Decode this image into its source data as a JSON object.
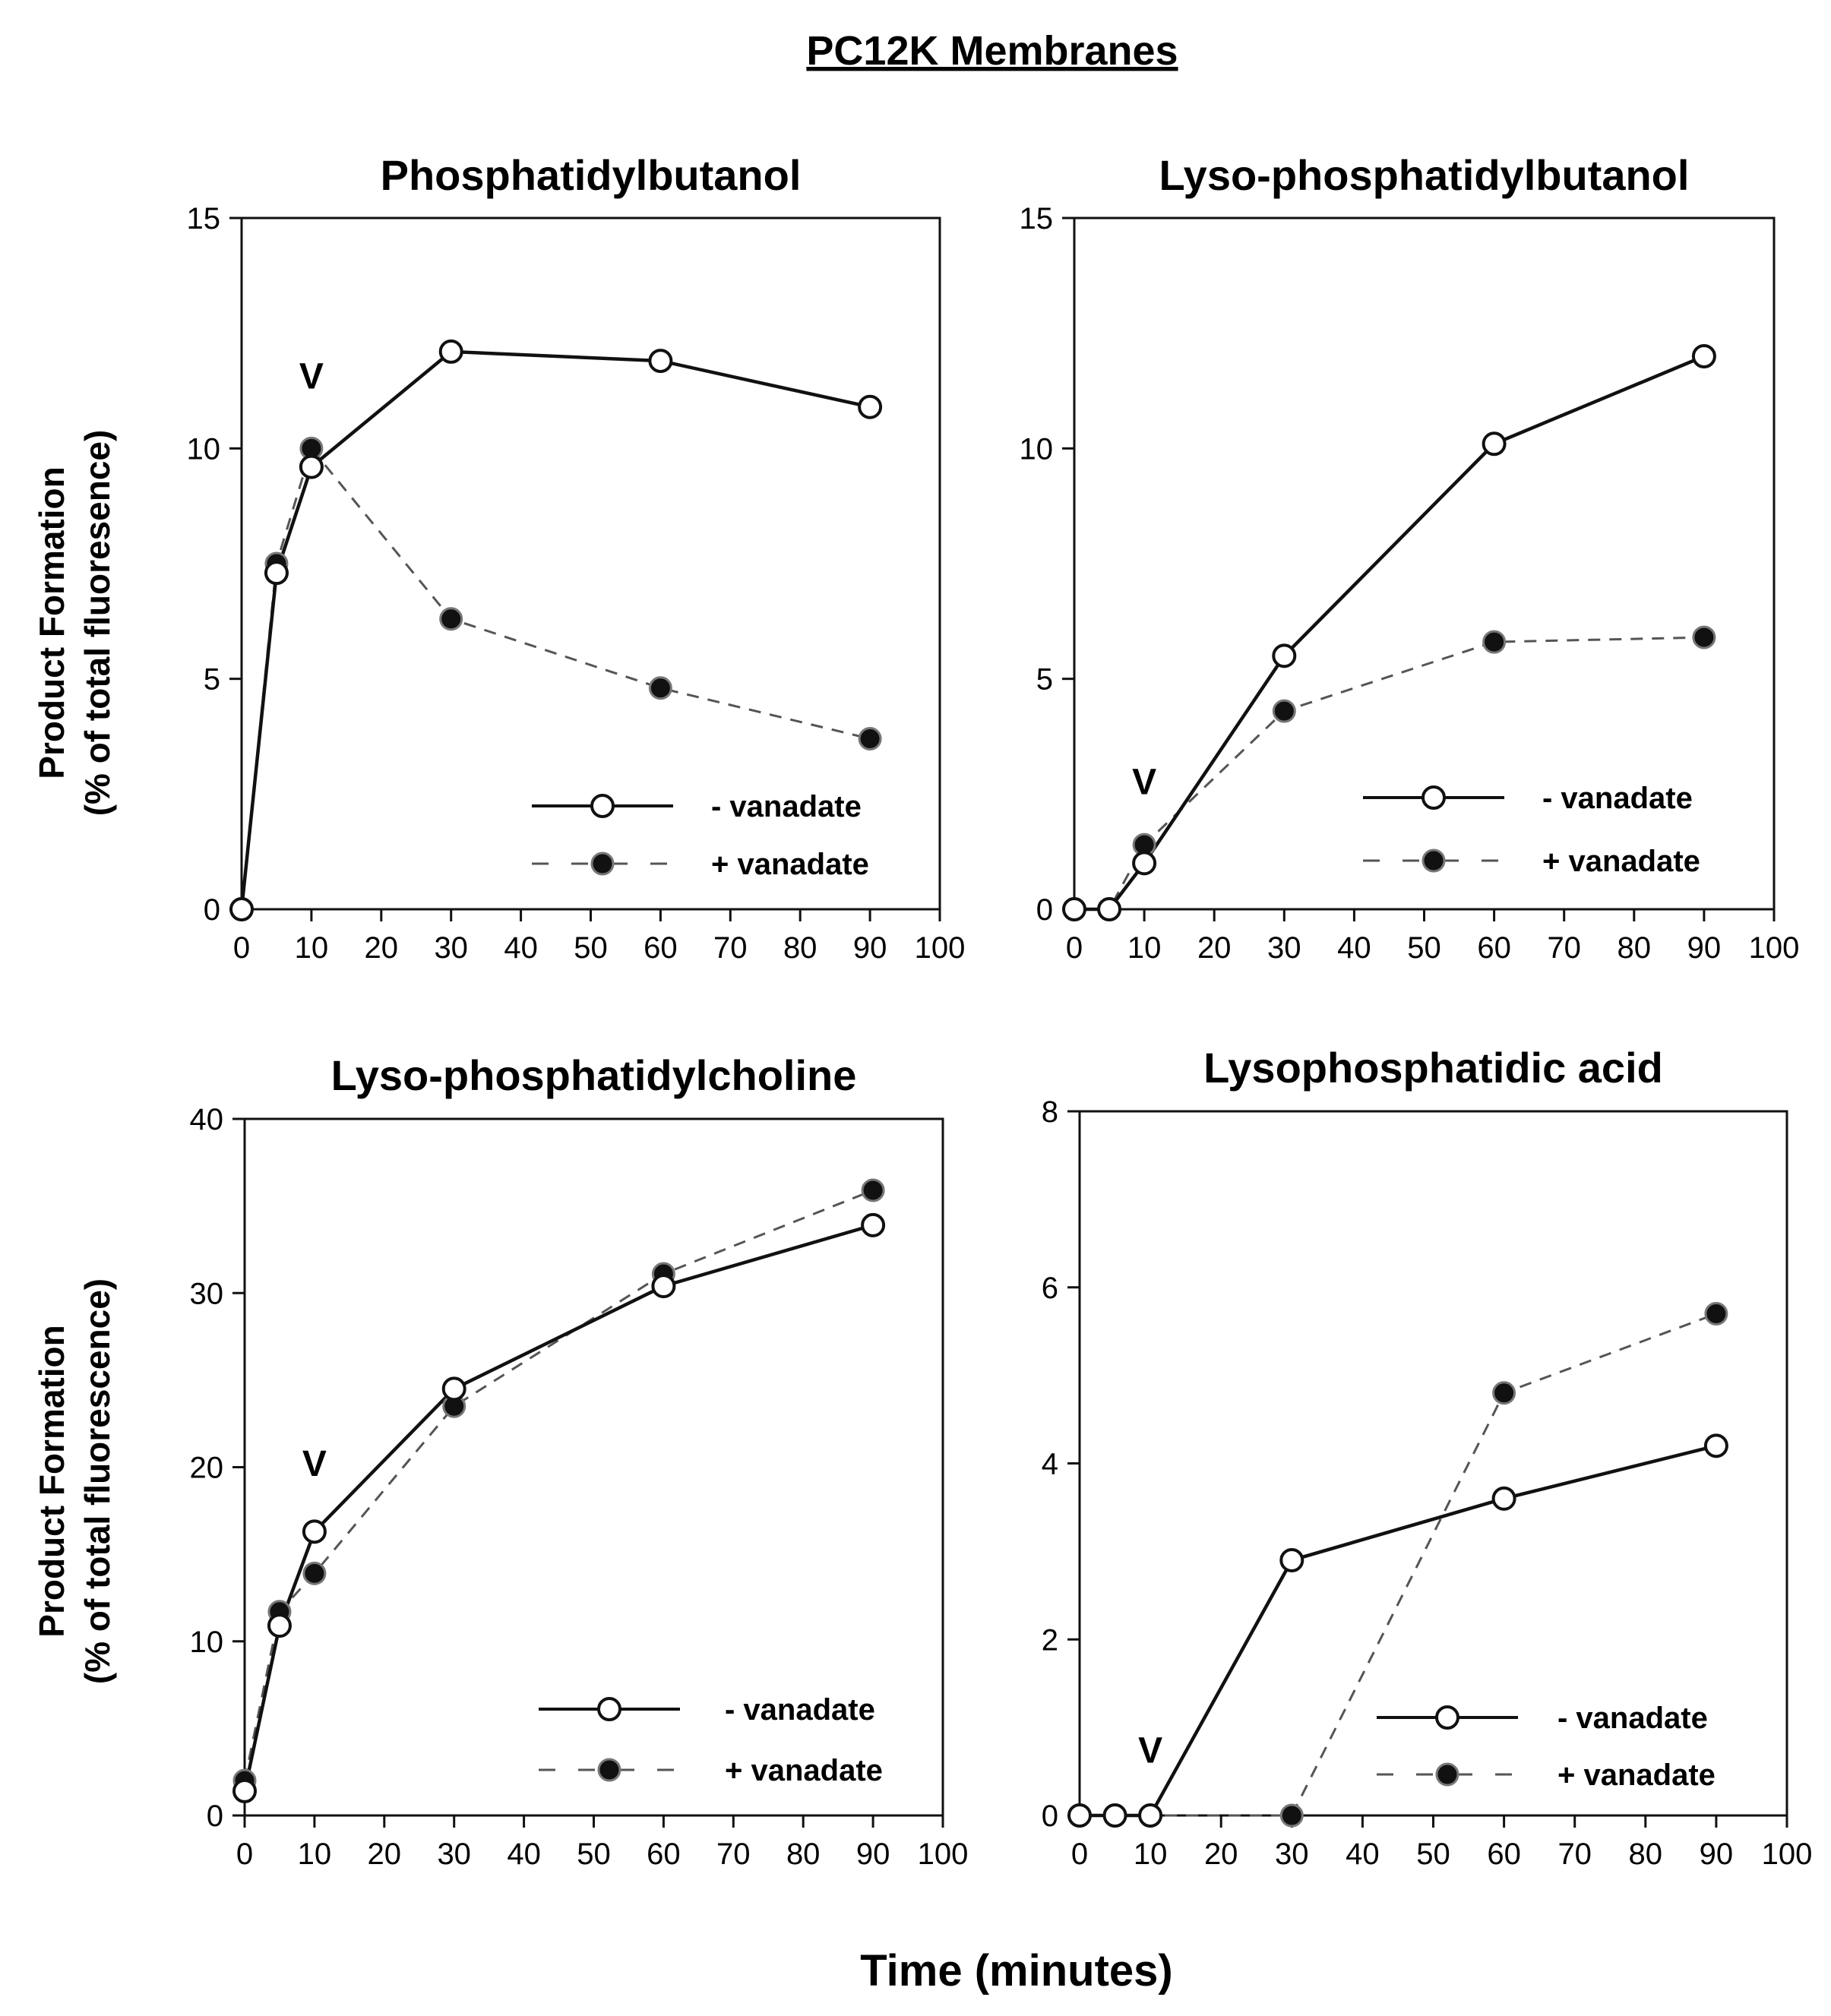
{
  "figure": {
    "title": "PC12K Membranes",
    "xlabel": "Time (minutes)",
    "ylabel_top_line1": "Product Formation",
    "ylabel_top_line2": "(% of total fluoresence)",
    "ylabel_bottom_line1": "Product Formation",
    "ylabel_bottom_line2": "(% of total fluorescence)",
    "vanadate_marker": "V"
  },
  "chart_data": [
    {
      "type": "line",
      "title": "Phosphatidylbutanol",
      "xlim": [
        0,
        100
      ],
      "ylim": [
        0,
        15
      ],
      "xticks": [
        0,
        10,
        20,
        30,
        40,
        50,
        60,
        70,
        80,
        90,
        100
      ],
      "yticks": [
        0,
        5,
        10,
        15
      ],
      "marker_v": {
        "label": "V",
        "x": 10,
        "y": 11.3
      },
      "legend_position": "bottom-right",
      "series": [
        {
          "name": "- vanadate",
          "marker": "open-circle",
          "linestyle": "solid",
          "x": [
            0,
            5,
            10,
            30,
            60,
            90
          ],
          "y": [
            0,
            7.3,
            9.6,
            12.1,
            11.9,
            10.9
          ]
        },
        {
          "name": "+ vanadate",
          "marker": "filled-circle",
          "linestyle": "dashed",
          "x": [
            0,
            5,
            10,
            30,
            60,
            90
          ],
          "y": [
            0,
            7.5,
            10.0,
            6.3,
            4.8,
            3.7
          ]
        }
      ]
    },
    {
      "type": "line",
      "title": "Lyso-phosphatidylbutanol",
      "xlim": [
        0,
        100
      ],
      "ylim": [
        0,
        15
      ],
      "xticks": [
        0,
        10,
        20,
        30,
        40,
        50,
        60,
        70,
        80,
        90,
        100
      ],
      "yticks": [
        0,
        5,
        10,
        15
      ],
      "marker_v": {
        "label": "V",
        "x": 10,
        "y": 2.5
      },
      "legend_position": "bottom-right",
      "series": [
        {
          "name": "- vanadate",
          "marker": "open-circle",
          "linestyle": "solid",
          "x": [
            0,
            5,
            10,
            30,
            60,
            90
          ],
          "y": [
            0,
            0,
            1.0,
            5.5,
            10.1,
            12.0
          ]
        },
        {
          "name": "+ vanadate",
          "marker": "filled-circle",
          "linestyle": "dashed",
          "x": [
            0,
            5,
            10,
            30,
            60,
            90
          ],
          "y": [
            0,
            0,
            1.4,
            4.3,
            5.8,
            5.9
          ]
        }
      ]
    },
    {
      "type": "line",
      "title": "Lyso-phosphatidylcholine",
      "xlim": [
        0,
        100
      ],
      "ylim": [
        0,
        40
      ],
      "xticks": [
        0,
        10,
        20,
        30,
        40,
        50,
        60,
        70,
        80,
        90,
        100
      ],
      "yticks": [
        0,
        10,
        20,
        30,
        40
      ],
      "marker_v": {
        "label": "V",
        "x": 10,
        "y": 19.5
      },
      "legend_position": "bottom-right",
      "series": [
        {
          "name": "- vanadate",
          "marker": "open-circle",
          "linestyle": "solid",
          "x": [
            0,
            5,
            10,
            30,
            60,
            90
          ],
          "y": [
            1.4,
            10.9,
            16.3,
            24.5,
            30.4,
            33.9
          ]
        },
        {
          "name": "+ vanadate",
          "marker": "filled-circle",
          "linestyle": "dashed",
          "x": [
            0,
            5,
            10,
            30,
            60,
            90
          ],
          "y": [
            2.0,
            11.7,
            13.9,
            23.5,
            31.1,
            35.9
          ]
        }
      ]
    },
    {
      "type": "line",
      "title": "Lysophosphatidic acid",
      "xlim": [
        0,
        100
      ],
      "ylim": [
        0,
        8
      ],
      "xticks": [
        0,
        10,
        20,
        30,
        40,
        50,
        60,
        70,
        80,
        90,
        100
      ],
      "yticks": [
        0,
        2,
        4,
        6,
        8
      ],
      "marker_v": {
        "label": "V",
        "x": 10,
        "y": 0.6
      },
      "legend_position": "bottom-right",
      "series": [
        {
          "name": "- vanadate",
          "marker": "open-circle",
          "linestyle": "solid",
          "x": [
            0,
            5,
            10,
            30,
            60,
            90
          ],
          "y": [
            0,
            0,
            0,
            2.9,
            3.6,
            4.2
          ]
        },
        {
          "name": "+ vanadate",
          "marker": "filled-circle",
          "linestyle": "dashed",
          "x": [
            0,
            5,
            10,
            30,
            60,
            90
          ],
          "y": [
            0,
            0,
            0,
            0,
            4.8,
            5.7
          ]
        }
      ]
    }
  ]
}
